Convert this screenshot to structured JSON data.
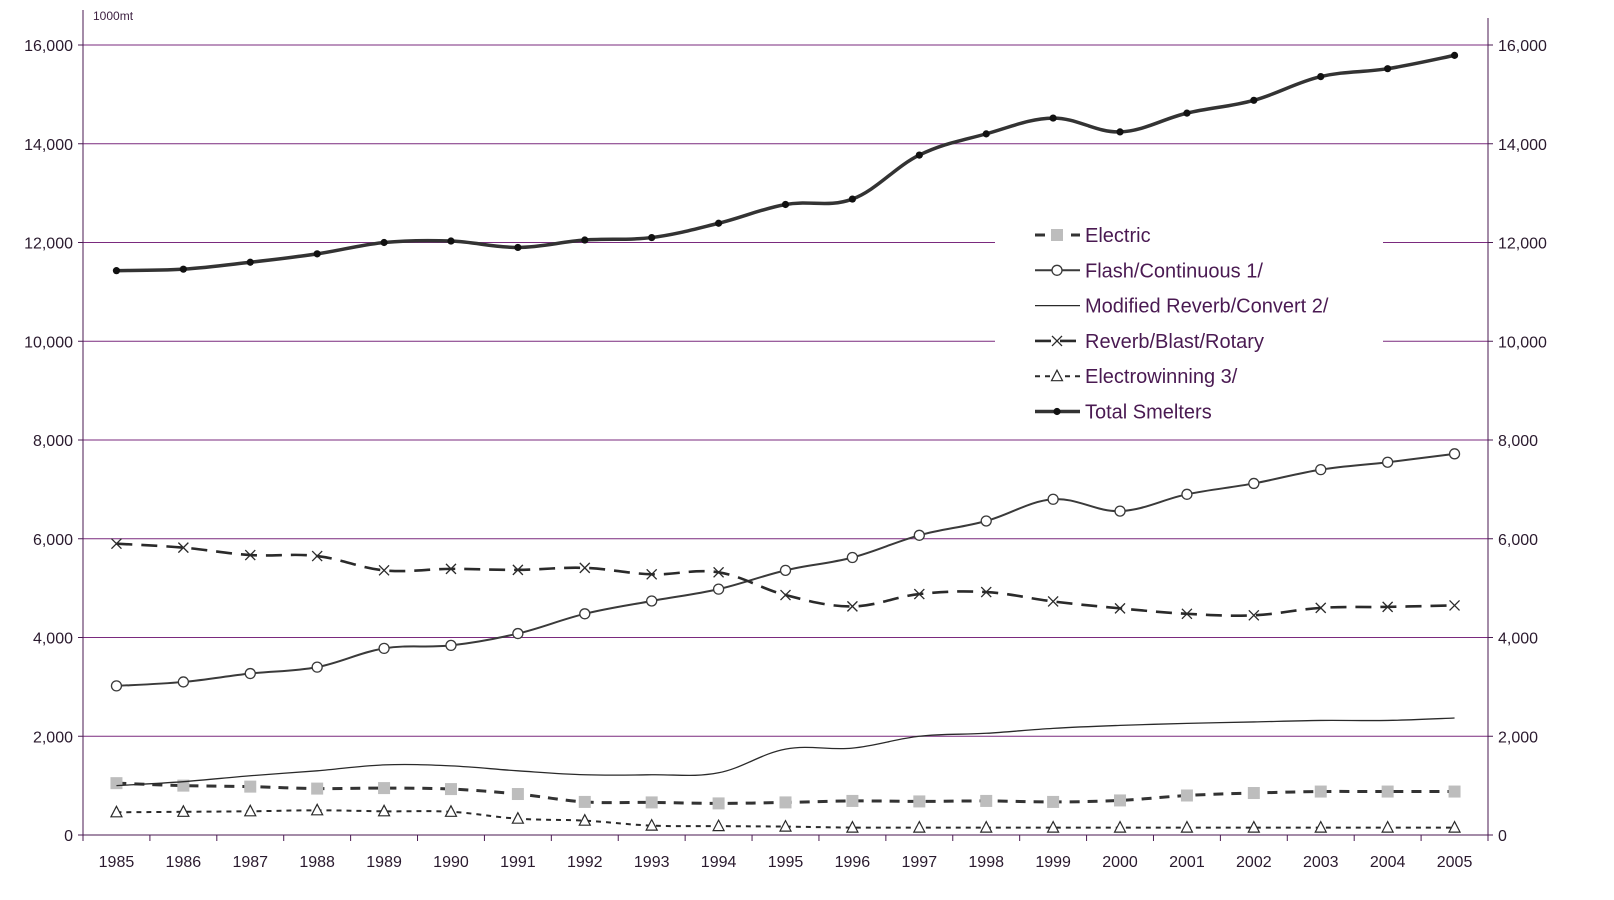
{
  "chart_data": {
    "type": "line",
    "unit_label": "1000mt",
    "x": [
      "1985",
      "1986",
      "1987",
      "1988",
      "1989",
      "1990",
      "1991",
      "1992",
      "1993",
      "1994",
      "1995",
      "1996",
      "1997",
      "1998",
      "1999",
      "2000",
      "2001",
      "2002",
      "2003",
      "2004",
      "2005"
    ],
    "ylim": [
      0,
      16000
    ],
    "y_ticks": [
      "0",
      "2,000",
      "4,000",
      "6,000",
      "8,000",
      "10,000",
      "12,000",
      "14,000",
      "16,000"
    ],
    "y_tick_values": [
      0,
      2000,
      4000,
      6000,
      8000,
      10000,
      12000,
      14000,
      16000
    ],
    "grid": true,
    "grid_color": "#7a2a7e",
    "legend_position": "center-right",
    "series": [
      {
        "name": "Electric",
        "color": "#bdbdbd",
        "marker": "square",
        "line_style": "dashed",
        "values": [
          1050,
          1000,
          980,
          940,
          950,
          930,
          830,
          670,
          660,
          640,
          660,
          690,
          680,
          690,
          670,
          700,
          800,
          850,
          880,
          880,
          880
        ]
      },
      {
        "name": "Flash/Continuous 1/",
        "color": "#3a3a3a",
        "marker": "circle",
        "line_style": "solid",
        "values": [
          3020,
          3100,
          3270,
          3400,
          3780,
          3840,
          4080,
          4480,
          4740,
          4980,
          5360,
          5620,
          6070,
          6360,
          6800,
          6560,
          6900,
          7120,
          7400,
          7550,
          7720
        ]
      },
      {
        "name": "Modified Reverb/Convert 2/",
        "color": "#2a2a2a",
        "marker": "none",
        "line_style": "solid-thin",
        "values": [
          1000,
          1080,
          1200,
          1300,
          1420,
          1400,
          1300,
          1220,
          1220,
          1260,
          1740,
          1760,
          2000,
          2060,
          2160,
          2220,
          2260,
          2290,
          2320,
          2320,
          2370
        ]
      },
      {
        "name": "Reverb/Blast/Rotary",
        "color": "#2a2a2a",
        "marker": "x",
        "line_style": "long-dashed",
        "values": [
          5900,
          5820,
          5670,
          5650,
          5360,
          5390,
          5370,
          5410,
          5280,
          5320,
          4860,
          4630,
          4880,
          4920,
          4730,
          4590,
          4480,
          4450,
          4600,
          4620,
          4650
        ]
      },
      {
        "name": "Electrowinning 3/",
        "color": "#2a2a2a",
        "marker": "triangle",
        "line_style": "dotted",
        "values": [
          460,
          470,
          480,
          500,
          480,
          470,
          330,
          290,
          190,
          180,
          170,
          150,
          150,
          150,
          150,
          150,
          150,
          150,
          150,
          150,
          150
        ]
      },
      {
        "name": "Total Smelters",
        "color": "#333333",
        "marker": "dot",
        "line_style": "thick",
        "values": [
          11430,
          11460,
          11600,
          11770,
          12000,
          12030,
          11900,
          12050,
          12100,
          12390,
          12770,
          12880,
          13770,
          14200,
          14520,
          14240,
          14620,
          14880,
          15360,
          15520,
          15790
        ]
      }
    ]
  }
}
